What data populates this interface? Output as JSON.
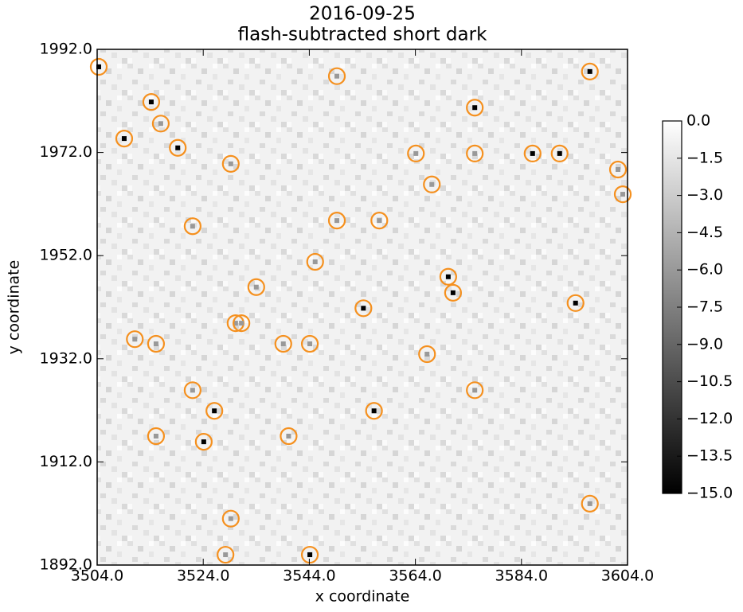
{
  "chart_data": {
    "type": "scatter",
    "title": "2016-09-25",
    "subtitle": "flash-subtracted short dark",
    "x_label": "x coordinate",
    "y_label": "y coordinate",
    "xlim": [
      3504,
      3604
    ],
    "ylim": [
      1892,
      1992
    ],
    "xticks": [
      {
        "value": 3504,
        "label": "3504.0"
      },
      {
        "value": 3524,
        "label": "3524.0"
      },
      {
        "value": 3544,
        "label": "3544.0"
      },
      {
        "value": 3564,
        "label": "3564.0"
      },
      {
        "value": 3584,
        "label": "3584.0"
      },
      {
        "value": 3604,
        "label": "3604.0"
      }
    ],
    "yticks": [
      {
        "value": 1892,
        "label": "1892.0"
      },
      {
        "value": 1912,
        "label": "1912.0"
      },
      {
        "value": 1932,
        "label": "1932.0"
      },
      {
        "value": 1952,
        "label": "1952.0"
      },
      {
        "value": 1972,
        "label": "1972.0"
      },
      {
        "value": 1992,
        "label": "1992.0"
      }
    ],
    "marker_color": "#f5901e",
    "clim": [
      -15,
      0
    ],
    "cticks": [
      {
        "value": 0,
        "label": "0.0"
      },
      {
        "value": -1.5,
        "label": "−1.5"
      },
      {
        "value": -3,
        "label": "−3.0"
      },
      {
        "value": -4.5,
        "label": "−4.5"
      },
      {
        "value": -6,
        "label": "−6.0"
      },
      {
        "value": -7.5,
        "label": "−7.5"
      },
      {
        "value": -9,
        "label": "−9.0"
      },
      {
        "value": -10.5,
        "label": "−10.5"
      },
      {
        "value": -12,
        "label": "−12.0"
      },
      {
        "value": -13.5,
        "label": "−13.5"
      },
      {
        "value": -15,
        "label": "−15.0"
      }
    ],
    "x": [
      3504.3,
      3514.2,
      3549.2,
      3596.9,
      3575.2,
      3516.0,
      3509.1,
      3519.2,
      3529.2,
      3564.1,
      3575.2,
      3586.1,
      3591.2,
      3602.2,
      3567.1,
      3603.1,
      3522.0,
      3549.2,
      3557.2,
      3545.1,
      3570.2,
      3571.1,
      3534.0,
      3554.2,
      3594.2,
      3530.1,
      3531.2,
      3511.1,
      3515.1,
      3539.1,
      3544.1,
      3566.2,
      3522.0,
      3575.2,
      3526.1,
      3556.2,
      3515.1,
      3524.1,
      3540.1,
      3596.9,
      3529.2,
      3528.2,
      3544.1
    ],
    "y": [
      1988.6,
      1981.8,
      1986.8,
      1987.7,
      1980.7,
      1977.6,
      1974.7,
      1972.9,
      1969.8,
      1971.8,
      1971.8,
      1971.8,
      1971.8,
      1968.7,
      1965.8,
      1963.9,
      1957.7,
      1958.8,
      1958.8,
      1950.8,
      1947.9,
      1944.8,
      1945.9,
      1941.8,
      1942.8,
      1938.9,
      1938.9,
      1935.8,
      1934.9,
      1934.9,
      1934.9,
      1932.9,
      1925.9,
      1925.9,
      1921.9,
      1921.9,
      1917.0,
      1915.9,
      1917.0,
      1903.9,
      1901.0,
      1894.0,
      1894.0
    ],
    "values": [
      -15,
      -15,
      -6,
      -15,
      -15,
      -6,
      -15,
      -15,
      -6,
      -6,
      -6,
      -15,
      -15,
      -6,
      -6,
      -6,
      -6,
      -6,
      -6,
      -6,
      -15,
      -15,
      -6,
      -15,
      -15,
      -6,
      -6,
      -6,
      -6,
      -6,
      -6,
      -6,
      -6,
      -6,
      -15,
      -15,
      -6,
      -15,
      -6,
      -6,
      -6,
      -6,
      -15
    ]
  }
}
